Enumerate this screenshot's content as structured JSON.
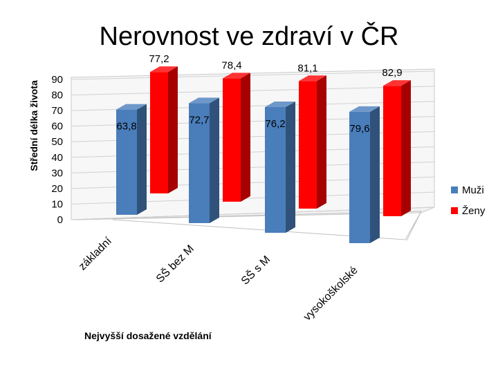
{
  "slide": {
    "title": "Nerovnost ve zdraví v ČR"
  },
  "chart_data": {
    "type": "bar",
    "title": "Nerovnost ve zdraví v ČR",
    "categories": [
      "základní",
      "SŠ bez M",
      "SŠ s M",
      "vysokoškolské"
    ],
    "series": [
      {
        "name": "Muži",
        "values": [
          63.8,
          72.7,
          76.2,
          79.6
        ],
        "labels": [
          "63,8",
          "72,7",
          "76,2",
          "79,6"
        ],
        "color": "#4a7ebb"
      },
      {
        "name": "Ženy",
        "values": [
          77.2,
          78.4,
          81.1,
          82.9
        ],
        "labels": [
          "77,2",
          "78,4",
          "81,1",
          "82,9"
        ],
        "color": "#ff0000"
      }
    ],
    "xlabel": "Nejvyšší dosažené vzdělání",
    "ylabel": "Střední délka života",
    "ylim": [
      0,
      90
    ],
    "yticks": [
      0,
      10,
      20,
      30,
      40,
      50,
      60,
      70,
      80,
      90
    ],
    "grid": true,
    "legend": "right",
    "style": "3d-column"
  }
}
